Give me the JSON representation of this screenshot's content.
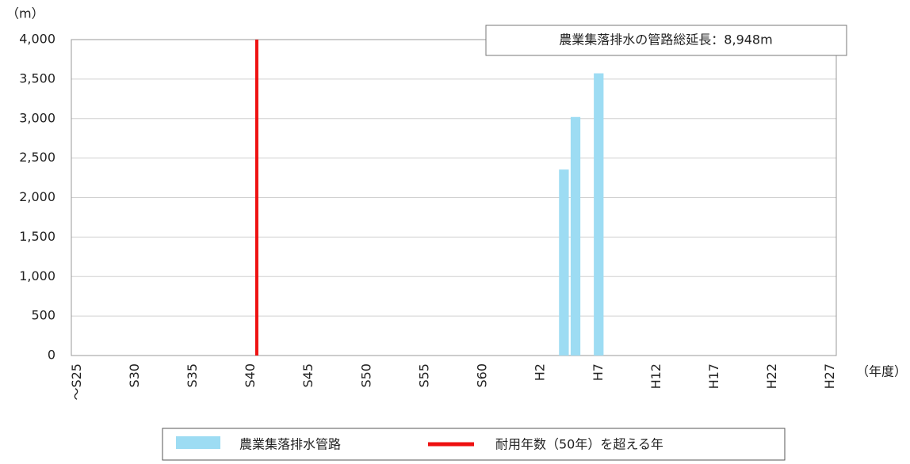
{
  "chart_data": {
    "type": "bar",
    "y_unit": "（m）",
    "x_unit": "（年度）",
    "annotation": "農業集落排水の管路総延長：8,948m",
    "categories": [
      "～S25",
      null,
      null,
      null,
      null,
      "S30",
      null,
      null,
      null,
      null,
      "S35",
      null,
      null,
      null,
      null,
      "S40",
      null,
      null,
      null,
      null,
      "S45",
      null,
      null,
      null,
      null,
      "S50",
      null,
      null,
      null,
      null,
      "S55",
      null,
      null,
      null,
      null,
      "S60",
      null,
      null,
      null,
      null,
      "H2",
      null,
      null,
      null,
      null,
      "H7",
      null,
      null,
      null,
      null,
      "H12",
      null,
      null,
      null,
      null,
      "H17",
      null,
      null,
      null,
      null,
      "H22",
      null,
      null,
      null,
      null,
      "H27"
    ],
    "series": [
      {
        "name": "農業集落排水管路",
        "color": "#9ddcf3",
        "values": [
          0,
          0,
          0,
          0,
          0,
          0,
          0,
          0,
          0,
          0,
          0,
          0,
          0,
          0,
          0,
          0,
          0,
          0,
          0,
          0,
          0,
          0,
          0,
          0,
          0,
          0,
          0,
          0,
          0,
          0,
          0,
          0,
          0,
          0,
          0,
          0,
          0,
          0,
          0,
          0,
          0,
          0,
          2355,
          3020,
          0,
          3573,
          0,
          0,
          0,
          0,
          0,
          0,
          0,
          0,
          0,
          0,
          0,
          0,
          0,
          0,
          0,
          0,
          0,
          0,
          0,
          0
        ]
      }
    ],
    "vline": {
      "name": "耐用年数（50年）を超える年",
      "color": "#ee1111",
      "category_index": 16
    },
    "ylim": [
      0,
      4000
    ],
    "yticks": [
      0,
      500,
      {
        "value": 1000,
        "label": "1,000"
      },
      {
        "value": 1500,
        "label": "1,500"
      },
      {
        "value": 2000,
        "label": "2,000"
      },
      {
        "value": 2500,
        "label": "2,500"
      },
      {
        "value": 3000,
        "label": "3,000"
      },
      {
        "value": 3500,
        "label": "3,500"
      },
      {
        "value": 4000,
        "label": "4,000"
      }
    ],
    "grid": true
  }
}
